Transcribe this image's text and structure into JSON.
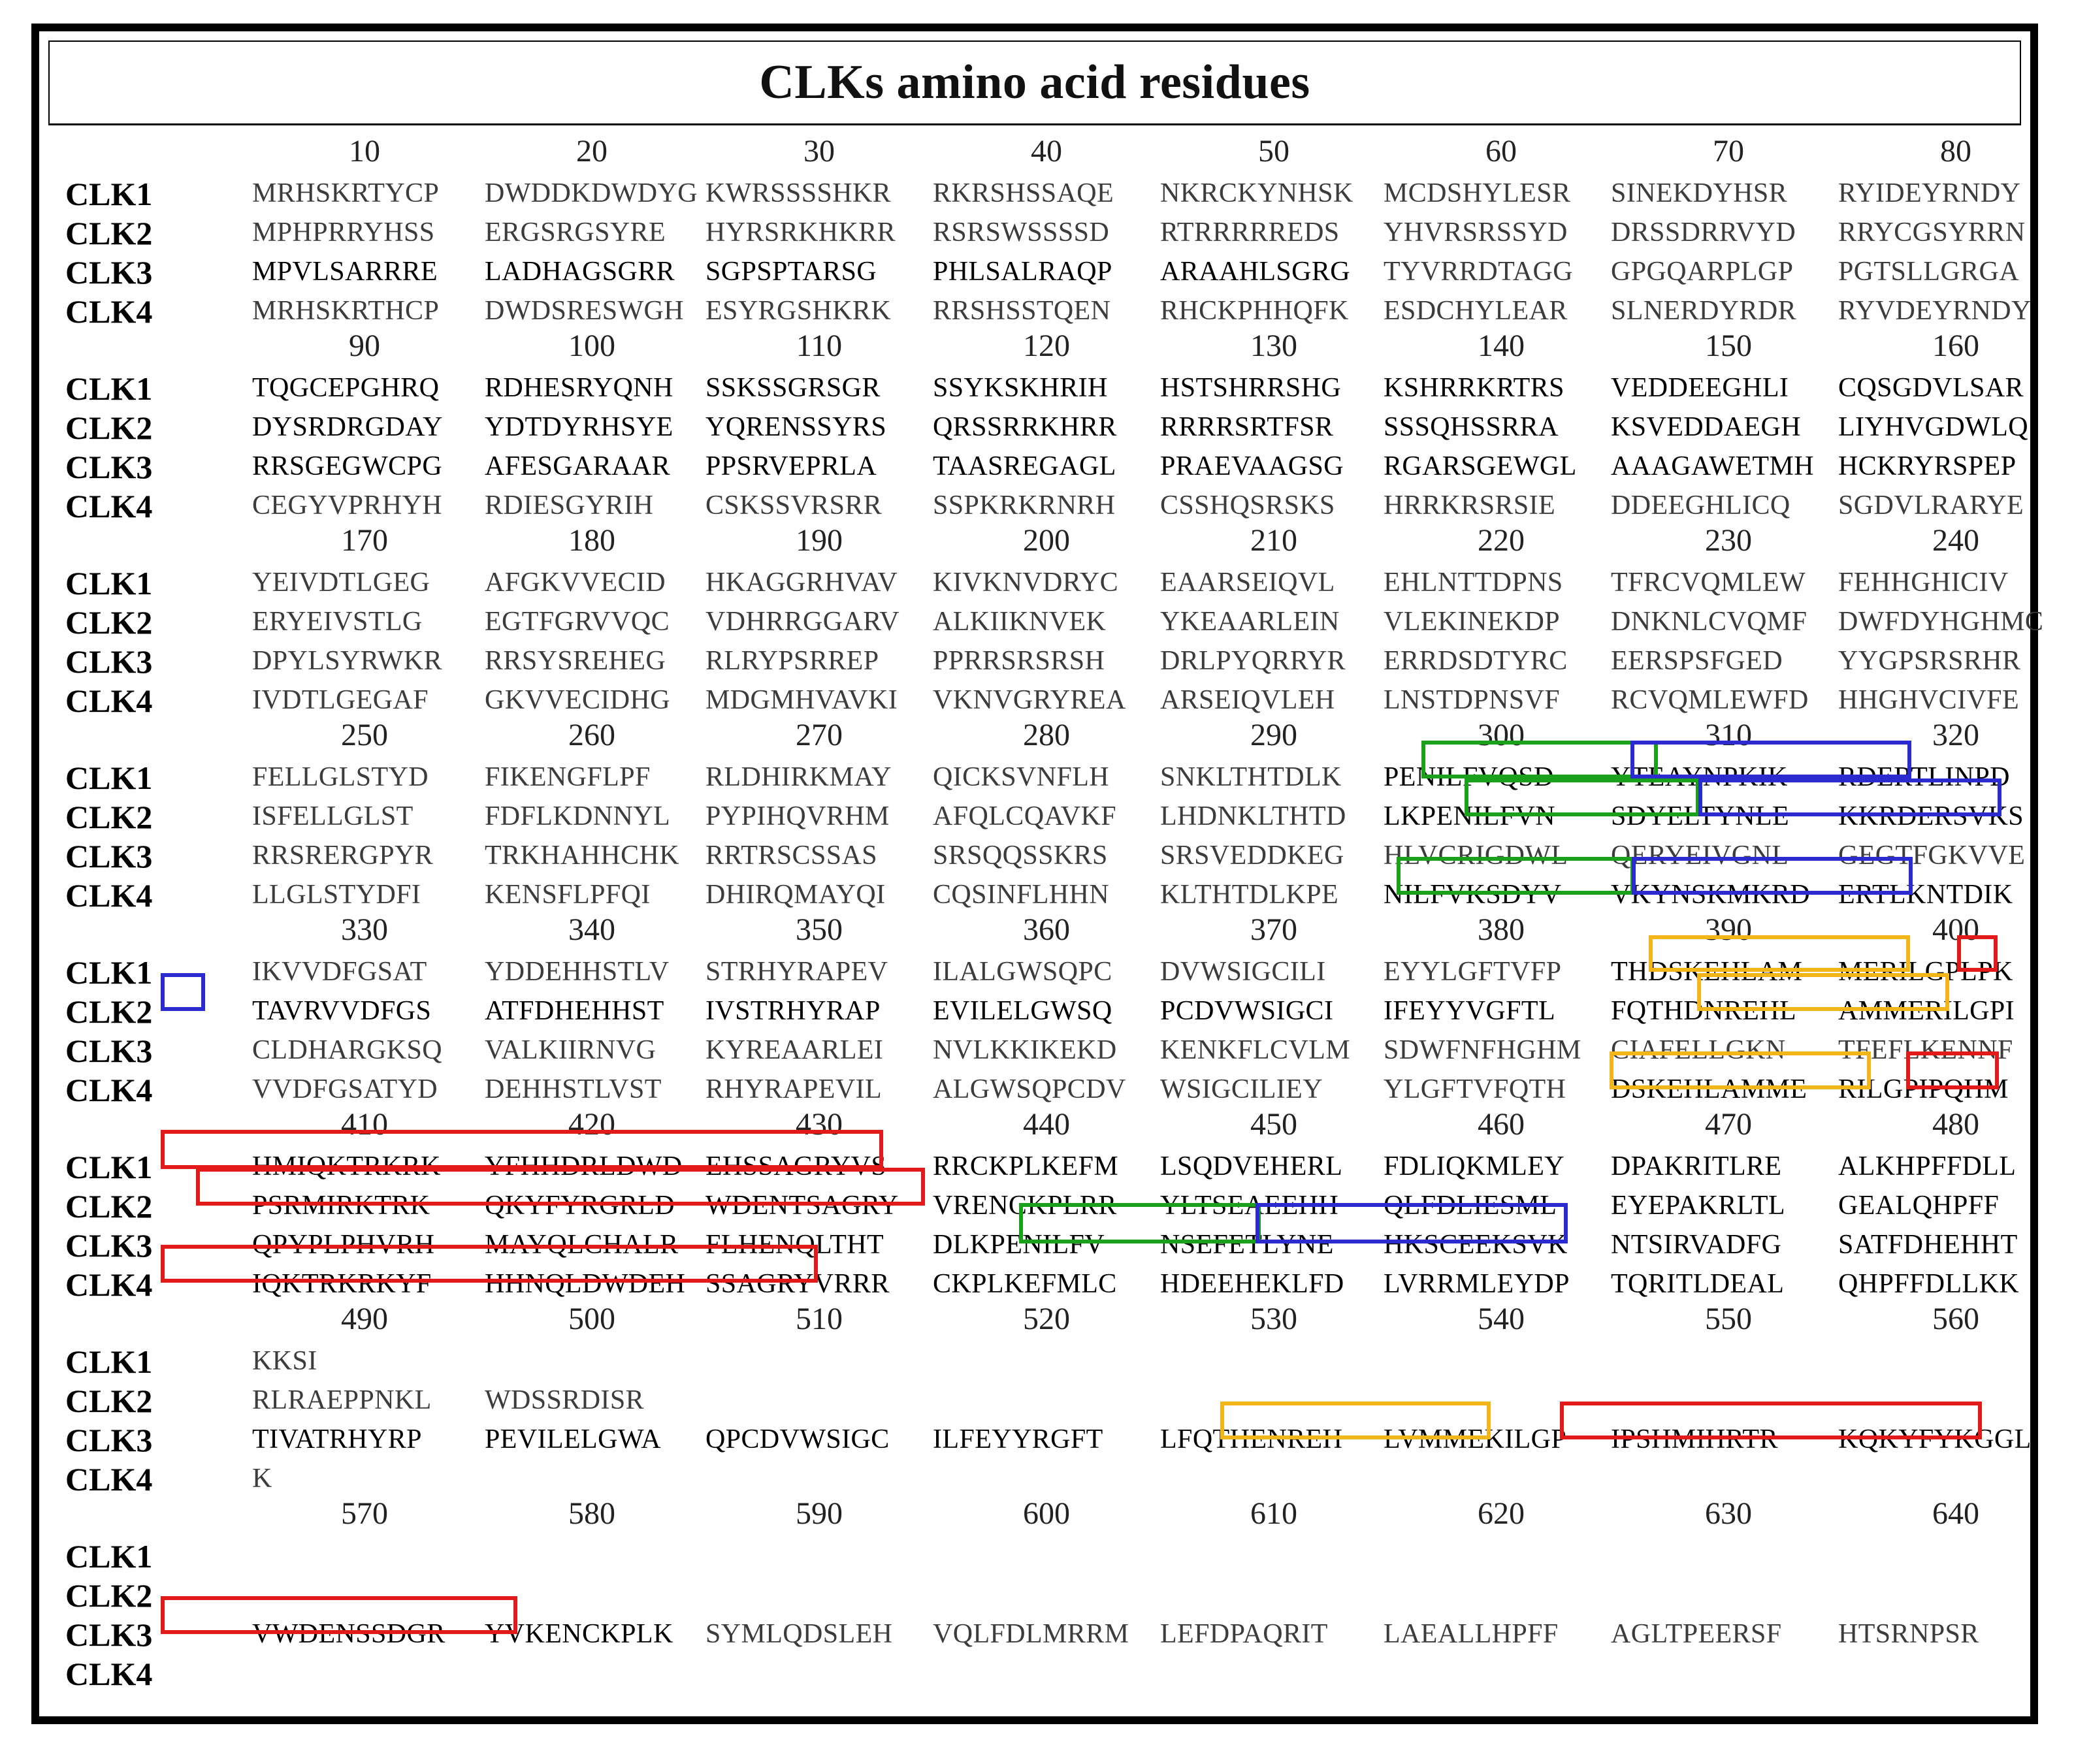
{
  "title": "CLKs amino acid residues",
  "colors": {
    "green": "#1aa01a",
    "blue": "#2b2bd0",
    "orange": "#f2b51a",
    "red": "#e31a1a",
    "seq_grey": "#3c3c3c",
    "seq_black": "#000000"
  },
  "blocks": [
    {
      "numbers": [
        "10",
        "20",
        "30",
        "40",
        "50",
        "60",
        "70",
        "80"
      ],
      "rows": [
        {
          "label": "CLK1",
          "style": "g",
          "segments": [
            "MRHSKRTYCP",
            "DWDDKDWDYG",
            "KWRSSSSHKR",
            "RKRSHSSAQE",
            "NKRCKYNHSK",
            "MCDSHYLESR",
            "SINEKDYHSR",
            "RYIDEYRNDY"
          ]
        },
        {
          "label": "CLK2",
          "style": "g",
          "segments": [
            "MPHPRRYHSS",
            "ERGSRGSYRE",
            "HYRSRKHKRR",
            "RSRSWSSSSD",
            "RTRRRRREDS",
            "YHVRSRSSYD",
            "DRSSDRRVYD",
            "RRYCGSYRRN"
          ]
        },
        {
          "label": "CLK3",
          "style": "b",
          "segments": [
            "MPVLSARRRE",
            "LADHAGSGRR",
            "SGPSPTARSG",
            "PHLSALRAQP",
            "ARAAHLSGRG",
            "TYVRRDTAGG",
            "GPGQARPLGP",
            "PGTSLLGRGA"
          ],
          "styles": [
            "b",
            "b",
            "b",
            "b",
            "b",
            "g",
            "g",
            "g"
          ]
        },
        {
          "label": "CLK4",
          "style": "g",
          "segments": [
            "MRHSKRTHCP",
            "DWDSRESWGH",
            "ESYRGSHKRK",
            "RRSHSSTQEN",
            "RHCKPHHQFK",
            "ESDCHYLEAR",
            "SLNERDYRDR",
            "RYVDEYRNDY"
          ]
        }
      ]
    },
    {
      "numbers": [
        "90",
        "100",
        "110",
        "120",
        "130",
        "140",
        "150",
        "160"
      ],
      "rows": [
        {
          "label": "CLK1",
          "style": "b",
          "segments": [
            "TQGCEPGHRQ",
            "RDHESRYQNH",
            "SSKSSGRSGR",
            "SSYKSKHRIH",
            "HSTSHRRSHG",
            "KSHRRKRTRS",
            "VEDDEEGHLI",
            "CQSGDVLSAR"
          ]
        },
        {
          "label": "CLK2",
          "style": "b",
          "segments": [
            "DYSRDRGDAY",
            "YDTDYRHSYE",
            "YQRENSSYRS",
            "QRSSRRKHRR",
            "RRRRSRTFSR",
            "SSSQHSSRRA",
            "KSVEDDAEGH",
            "LIYHVGDWLQ"
          ]
        },
        {
          "label": "CLK3",
          "style": "b",
          "segments": [
            "RRSGEGWCPG",
            "AFESGARAAR",
            "PPSRVEPRLA",
            "TAASREGAGL",
            "PRAEVAAGSG",
            "RGARSGEWGL",
            "AAAGAWETMH",
            "HCKRYRSPEP"
          ]
        },
        {
          "label": "CLK4",
          "style": "g",
          "segments": [
            "CEGYVPRHYH",
            "RDIESGYRIH",
            "CSKSSVRSRR",
            "SSPKRKRNRH",
            "CSSHQSRSKS",
            "HRRKRSRSIE",
            "DDEEGHLICQ",
            "SGDVLRARYE"
          ]
        }
      ]
    },
    {
      "numbers": [
        "170",
        "180",
        "190",
        "200",
        "210",
        "220",
        "230",
        "240"
      ],
      "rows": [
        {
          "label": "CLK1",
          "style": "g",
          "segments": [
            "YEIVDTLGEG",
            "AFGKVVECID",
            "HKAGGRHVAV",
            "KIVKNVDRYC",
            "EAARSEIQVL",
            "EHLNTTDPNS",
            "TFRCVQMLEW",
            "FEHHGHICIV"
          ]
        },
        {
          "label": "CLK2",
          "style": "g",
          "segments": [
            "ERYEIVSTLG",
            "EGTFGRVVQC",
            "VDHRRGGARV",
            "ALKIIKNVEK",
            "YKEAARLEIN",
            "VLEKINEKDP",
            "DNKNLCVQMF",
            "DWFDYHGHMC"
          ]
        },
        {
          "label": "CLK3",
          "style": "g",
          "segments": [
            "DPYLSYRWKR",
            "RRSYSREHEG",
            "RLRYPSRREP",
            "PPRRSRSRSH",
            "DRLPYQRRYR",
            "ERRDSDTYRC",
            "EERSPSFGED",
            "YYGPSRSRHR"
          ]
        },
        {
          "label": "CLK4",
          "style": "g",
          "segments": [
            "IVDTLGEGAF",
            "GKVVECIDHG",
            "MDGMHVAVKI",
            "VKNVGRYREA",
            "ARSEIQVLEH",
            "LNSTDPNSVF",
            "RCVQMLEWFD",
            "HHGHVCIVFE"
          ]
        }
      ]
    },
    {
      "numbers": [
        "250",
        "260",
        "270",
        "280",
        "290",
        "300",
        "310",
        "320"
      ],
      "rows": [
        {
          "label": "CLK1",
          "style": "g",
          "segments": [
            "FELLGLSTYD",
            "FIKENGFLPF",
            "RLDHIRKMAY",
            "QICKSVNFLH",
            "SNKLTHTDLK",
            "PENILFVQSD",
            "YTEAYNPKIK",
            "RDERTLINPD"
          ],
          "styles": [
            "g",
            "g",
            "g",
            "g",
            "g",
            "b",
            "b",
            "b"
          ]
        },
        {
          "label": "CLK2",
          "style": "g",
          "segments": [
            "ISFELLGLST",
            "FDFLKDNNYL",
            "PYPIHQVRHM",
            "AFQLCQAVKF",
            "LHDNKLTHTD",
            "LKPENILFVN",
            "SDYELTYNLE",
            "KKRDERSVKS"
          ],
          "styles": [
            "g",
            "g",
            "g",
            "g",
            "g",
            "b",
            "b",
            "b"
          ]
        },
        {
          "label": "CLK3",
          "style": "g",
          "segments": [
            "RRSRERGPYR",
            "TRKHAHHCHK",
            "RRTRSCSSAS",
            "SRSQQSSKRS",
            "SRSVEDDKEG",
            "HLVCRIGDWL",
            "QERYEIVGNL",
            "GEGTFGKVVE"
          ]
        },
        {
          "label": "CLK4",
          "style": "g",
          "segments": [
            "LLGLSTYDFI",
            "KENSFLPFQI",
            "DHIRQMAYQI",
            "CQSINFLHHN",
            "KLTHTDLKPE",
            "NILFVKSDYV",
            "VKYNSKMKRD",
            "ERTLKNTDIK"
          ],
          "styles": [
            "g",
            "g",
            "g",
            "g",
            "g",
            "b",
            "b",
            "b"
          ]
        }
      ]
    },
    {
      "numbers": [
        "330",
        "340",
        "350",
        "360",
        "370",
        "380",
        "390",
        "400"
      ],
      "rows": [
        {
          "label": "CLK1",
          "style": "g",
          "segments": [
            "IKVVDFGSAT",
            "YDDEHHSTLV",
            "STRHYRAPEV",
            "ILALGWSQPC",
            "DVWSIGCILI",
            "EYYLGFTVFP",
            "THDSKEHLAM",
            "MERILGPLPK"
          ],
          "styles": [
            "g",
            "g",
            "g",
            "g",
            "g",
            "g",
            "b",
            "b"
          ]
        },
        {
          "label": "CLK2",
          "style": "b",
          "segments": [
            "TAVRVVDFGS",
            "ATFDHEHHST",
            "IVSTRHYRAP",
            "EVILELGWSQ",
            "PCDVWSIGCI",
            "IFEYYVGFTL",
            "FQTHDNREHL",
            "AMMERILGPI"
          ]
        },
        {
          "label": "CLK3",
          "style": "g",
          "segments": [
            "CLDHARGKSQ",
            "VALKIIRNVG",
            "KYREAARLEI",
            "NVLKKIKEKD",
            "KENKFLCVLM",
            "SDWFNFHGHM",
            "CIAFELLGKN",
            "TFEFLKENNF"
          ]
        },
        {
          "label": "CLK4",
          "style": "g",
          "segments": [
            "VVDFGSATYD",
            "DEHHSTLVST",
            "RHYRAPEVIL",
            "ALGWSQPCDV",
            "WSIGCILIEY",
            "YLGFTVFQTH",
            "DSKEHLAMME",
            "RILGPIPQHM"
          ],
          "styles": [
            "g",
            "g",
            "g",
            "g",
            "g",
            "g",
            "b",
            "b"
          ]
        }
      ]
    },
    {
      "numbers": [
        "410",
        "420",
        "430",
        "440",
        "450",
        "460",
        "470",
        "480"
      ],
      "rows": [
        {
          "label": "CLK1",
          "style": "b",
          "segments": [
            "HMIQKTRKRK",
            "YFHHDRLDWD",
            "EHSSAGRYVS",
            "RRCKPLKEFM",
            "LSQDVEHERL",
            "FDLIQKMLEY",
            "DPAKRITLRE",
            "ALKHPFFDLL"
          ]
        },
        {
          "label": "CLK2",
          "style": "b",
          "segments": [
            "PSRMIRKTRK",
            "QKYFYRGRLD",
            "WDENTSAGRY",
            "VRENCKPLRR",
            "YLTSEAEEHH",
            "QLFDLIESML",
            "EYEPAKRLTL",
            "GEALQHPFF"
          ]
        },
        {
          "label": "CLK3",
          "style": "b",
          "segments": [
            "QPYPLPHVRH",
            "MAYQLCHALR",
            "FLHENQLTHT",
            "DLKPENILFV",
            "NSEFETLYNE",
            "HKSCEEKSVK",
            "NTSIRVADFG",
            "SATFDHEHHT"
          ]
        },
        {
          "label": "CLK4",
          "style": "b",
          "segments": [
            "IQKTRKRKYF",
            "HHNQLDWDEH",
            "SSAGRYVRRR",
            "CKPLKEFMLC",
            "HDEEHEKLFD",
            "LVRRMLEYDP",
            "TQRITLDEAL",
            "QHPFFDLLKK"
          ]
        }
      ]
    },
    {
      "numbers": [
        "490",
        "500",
        "510",
        "520",
        "530",
        "540",
        "550",
        "560"
      ],
      "rows": [
        {
          "label": "CLK1",
          "style": "g",
          "segments": [
            "KKSI"
          ]
        },
        {
          "label": "CLK2",
          "style": "g",
          "segments": [
            "RLRAEPPNKL",
            "WDSSRDISR"
          ]
        },
        {
          "label": "CLK3",
          "style": "b",
          "segments": [
            "TIVATRHYRP",
            "PEVILELGWA",
            "QPCDVWSIGC",
            "ILFEYYRGFT",
            "LFQTHENREH",
            "LVMMEKILGP",
            "IPSHMIHRTR",
            "KQKYFYKGGL"
          ]
        },
        {
          "label": "CLK4",
          "style": "g",
          "segments": [
            "K"
          ]
        }
      ]
    },
    {
      "numbers": [
        "570",
        "580",
        "590",
        "600",
        "610",
        "620",
        "630",
        "640"
      ],
      "rows": [
        {
          "label": "CLK1",
          "style": "g",
          "segments": []
        },
        {
          "label": "CLK2",
          "style": "g",
          "segments": []
        },
        {
          "label": "CLK3",
          "style": "g",
          "segments": [
            "VWDENSSDGR",
            "YVKENCKPLK",
            "SYMLQDSLEH",
            "VQLFDLMRRM",
            "LEFDPAQRIT",
            "LAEALLHPFF",
            "AGLTPEERSF",
            "HTSRNPSR"
          ],
          "styles": [
            "b",
            "b",
            "g",
            "g",
            "g",
            "g",
            "g",
            "g"
          ]
        },
        {
          "label": "CLK4",
          "style": "g",
          "segments": []
        }
      ]
    }
  ]
}
